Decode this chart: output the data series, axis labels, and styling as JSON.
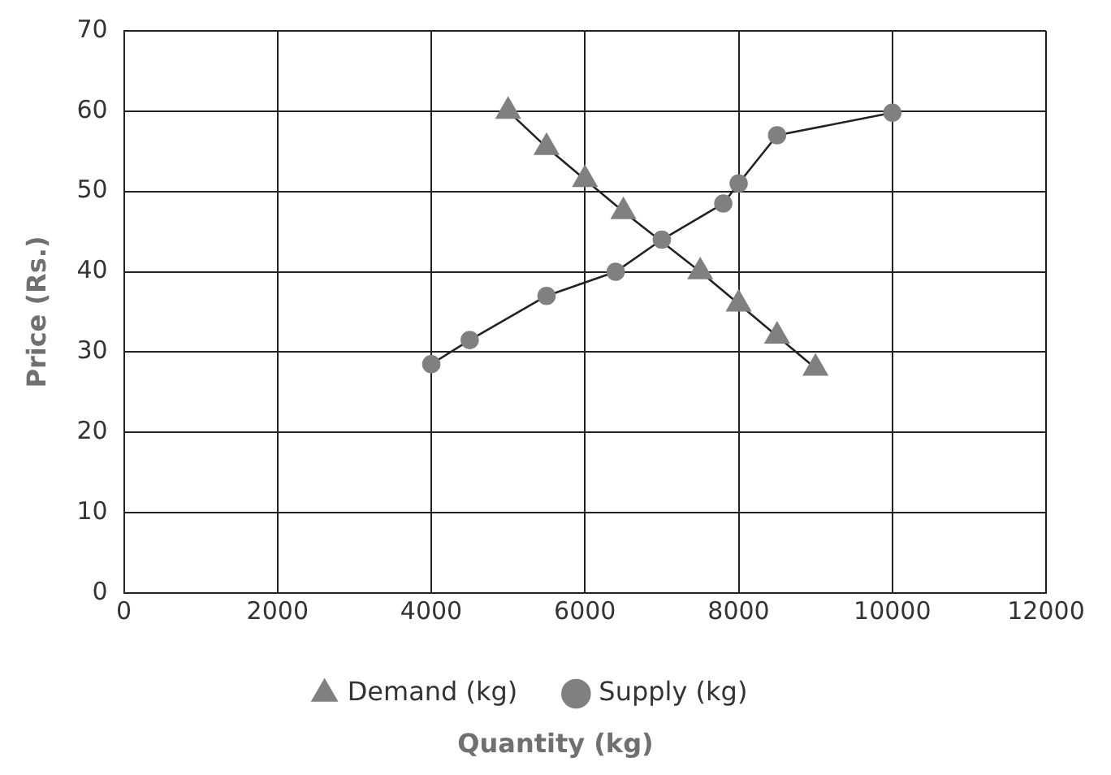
{
  "chart_data": {
    "type": "line",
    "xlabel": "Quantity (kg)",
    "ylabel": "Price (Rs.)",
    "xlim": [
      0,
      12000
    ],
    "xticks": [
      0,
      2000,
      4000,
      6000,
      8000,
      10000,
      12000
    ],
    "ylim": [
      0,
      70
    ],
    "yticks": [
      0,
      10,
      20,
      30,
      40,
      50,
      60,
      70
    ],
    "grid": true,
    "legend": "bottom",
    "line_style": "solid",
    "series": [
      {
        "name": "Demand (kg)",
        "color": "#808080",
        "marker": "triangle",
        "x": [
          5000,
          5500,
          6000,
          6500,
          7000,
          7500,
          8000,
          8500,
          9000
        ],
        "values": [
          60,
          55.5,
          51.5,
          47.5,
          null,
          40,
          36,
          32,
          28
        ]
      },
      {
        "name": "Supply (kg)",
        "color": "#808080",
        "marker": "circle",
        "x": [
          4000,
          4500,
          5500,
          6400,
          7000,
          7800,
          8000,
          8500,
          10000
        ],
        "values": [
          28.5,
          31.5,
          37,
          40,
          44,
          48.5,
          51,
          57,
          59.8
        ]
      }
    ]
  }
}
